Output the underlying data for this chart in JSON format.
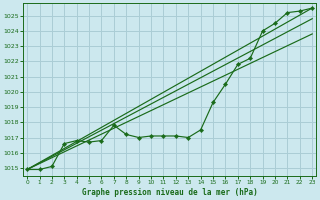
{
  "title": "Graphe pression niveau de la mer (hPa)",
  "bg_color": "#cce8ee",
  "grid_color": "#aacdd5",
  "line_color": "#1a6b1a",
  "ylim": [
    1014.5,
    1025.8
  ],
  "xlim": [
    -0.3,
    23.3
  ],
  "yticks": [
    1015,
    1016,
    1017,
    1018,
    1019,
    1020,
    1021,
    1022,
    1023,
    1024,
    1025
  ],
  "xticks": [
    0,
    1,
    2,
    3,
    4,
    5,
    6,
    7,
    8,
    9,
    10,
    11,
    12,
    13,
    14,
    15,
    16,
    17,
    18,
    19,
    20,
    21,
    22,
    23
  ],
  "straight_lines": [
    {
      "x": [
        0,
        23
      ],
      "y": [
        1014.9,
        1025.5
      ]
    },
    {
      "x": [
        0,
        23
      ],
      "y": [
        1014.9,
        1024.8
      ]
    },
    {
      "x": [
        0,
        23
      ],
      "y": [
        1014.9,
        1023.8
      ]
    }
  ],
  "data_line": {
    "x": [
      0,
      1,
      2,
      3,
      4,
      5,
      6,
      7,
      8,
      9,
      10,
      11,
      12,
      13,
      14,
      15,
      16,
      17,
      18,
      19,
      20,
      21,
      22,
      23
    ],
    "y": [
      1014.9,
      1014.9,
      1015.1,
      1016.6,
      1016.8,
      1016.7,
      1016.8,
      1017.8,
      1017.2,
      1017.0,
      1017.1,
      1017.1,
      1017.1,
      1017.0,
      1017.5,
      1019.3,
      1020.5,
      1021.8,
      1022.2,
      1024.0,
      1024.5,
      1025.2,
      1025.3,
      1025.5
    ],
    "marker": "D",
    "markersize": 2.2
  }
}
